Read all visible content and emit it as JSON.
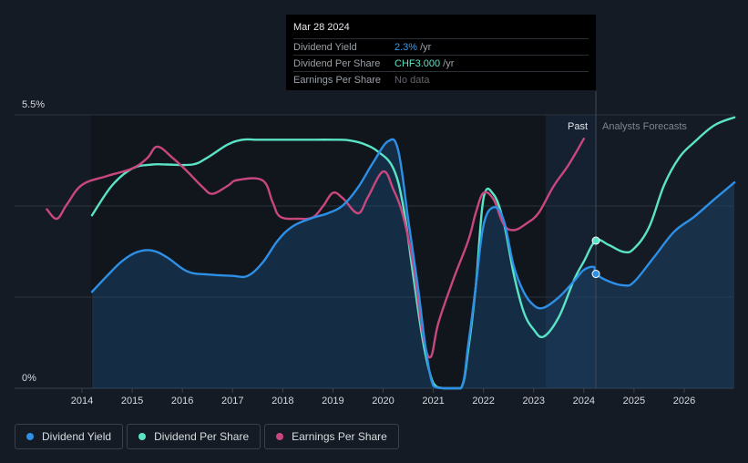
{
  "tooltip": {
    "date": "Mar 28 2024",
    "rows": [
      {
        "name": "Dividend Yield",
        "value": "2.3%",
        "unit": "/yr"
      },
      {
        "name": "Dividend Per Share",
        "value": "CHF3.000",
        "unit": "/yr"
      },
      {
        "name": "Earnings Per Share",
        "value": "No data",
        "unit": ""
      }
    ]
  },
  "legend": [
    {
      "label": "Dividend Yield",
      "color": "#2d8fe6"
    },
    {
      "label": "Dividend Per Share",
      "color": "#5be3c6"
    },
    {
      "label": "Earnings Per Share",
      "color": "#c9477f"
    }
  ],
  "chart_data": {
    "type": "line",
    "title": "",
    "ylabel": "",
    "ylim": [
      0,
      5.5
    ],
    "y_tick_labels": [
      "5.5%",
      "0%"
    ],
    "xlim": [
      2013.0,
      2027.0
    ],
    "x_ticks": [
      "2014",
      "2015",
      "2016",
      "2017",
      "2018",
      "2019",
      "2020",
      "2021",
      "2022",
      "2023",
      "2024",
      "2025",
      "2026"
    ],
    "divider_x": 2024.24,
    "forecast_start_shade": 2023.24,
    "region_labels": {
      "past": "Past",
      "forecast": "Analysts Forecasts"
    },
    "series": [
      {
        "name": "Dividend Yield",
        "color": "#2d8fe6",
        "filled": true,
        "points": [
          [
            2014.2,
            1.94
          ],
          [
            2014.5,
            2.26
          ],
          [
            2014.8,
            2.56
          ],
          [
            2015.1,
            2.74
          ],
          [
            2015.4,
            2.77
          ],
          [
            2015.7,
            2.63
          ],
          [
            2016.1,
            2.35
          ],
          [
            2016.5,
            2.29
          ],
          [
            2017.0,
            2.26
          ],
          [
            2017.3,
            2.26
          ],
          [
            2017.6,
            2.53
          ],
          [
            2017.9,
            2.97
          ],
          [
            2018.2,
            3.26
          ],
          [
            2018.6,
            3.43
          ],
          [
            2018.9,
            3.52
          ],
          [
            2019.2,
            3.68
          ],
          [
            2019.5,
            4.04
          ],
          [
            2019.8,
            4.54
          ],
          [
            2020.1,
            4.97
          ],
          [
            2020.3,
            4.79
          ],
          [
            2020.5,
            3.4
          ],
          [
            2020.7,
            1.99
          ],
          [
            2020.85,
            0.8
          ],
          [
            2021.0,
            0.05
          ],
          [
            2021.2,
            0.0
          ],
          [
            2021.55,
            0.0
          ],
          [
            2021.7,
            0.9
          ],
          [
            2021.85,
            2.08
          ],
          [
            2022.0,
            3.28
          ],
          [
            2022.2,
            3.64
          ],
          [
            2022.4,
            3.39
          ],
          [
            2022.6,
            2.47
          ],
          [
            2022.8,
            1.94
          ],
          [
            2023.0,
            1.67
          ],
          [
            2023.2,
            1.62
          ],
          [
            2023.5,
            1.83
          ],
          [
            2023.8,
            2.15
          ],
          [
            2024.0,
            2.38
          ],
          [
            2024.2,
            2.44
          ],
          [
            2024.24,
            2.3
          ],
          [
            2024.5,
            2.15
          ],
          [
            2024.8,
            2.07
          ],
          [
            2025.0,
            2.14
          ],
          [
            2025.4,
            2.64
          ],
          [
            2025.8,
            3.15
          ],
          [
            2026.2,
            3.45
          ],
          [
            2026.6,
            3.8
          ],
          [
            2027.0,
            4.14
          ]
        ]
      },
      {
        "name": "Dividend Per Share",
        "color": "#5be3c6",
        "filled": false,
        "points": [
          [
            2014.2,
            3.48
          ],
          [
            2014.6,
            4.08
          ],
          [
            2015.0,
            4.42
          ],
          [
            2015.4,
            4.5
          ],
          [
            2015.7,
            4.5
          ],
          [
            2016.2,
            4.5
          ],
          [
            2016.5,
            4.64
          ],
          [
            2016.9,
            4.9
          ],
          [
            2017.2,
            5.0
          ],
          [
            2017.5,
            5.0
          ],
          [
            2018.0,
            5.0
          ],
          [
            2018.5,
            5.0
          ],
          [
            2019.0,
            5.0
          ],
          [
            2019.3,
            4.99
          ],
          [
            2019.6,
            4.92
          ],
          [
            2019.9,
            4.76
          ],
          [
            2020.2,
            4.43
          ],
          [
            2020.4,
            3.67
          ],
          [
            2020.6,
            2.27
          ],
          [
            2020.8,
            0.91
          ],
          [
            2021.0,
            0.1
          ],
          [
            2021.2,
            0.0
          ],
          [
            2021.55,
            0.0
          ],
          [
            2021.7,
            0.8
          ],
          [
            2021.85,
            2.09
          ],
          [
            2022.0,
            3.82
          ],
          [
            2022.2,
            3.9
          ],
          [
            2022.4,
            3.35
          ],
          [
            2022.6,
            2.31
          ],
          [
            2022.8,
            1.54
          ],
          [
            2023.0,
            1.18
          ],
          [
            2023.2,
            1.04
          ],
          [
            2023.5,
            1.43
          ],
          [
            2023.8,
            2.17
          ],
          [
            2024.0,
            2.55
          ],
          [
            2024.24,
            2.97
          ],
          [
            2024.5,
            2.88
          ],
          [
            2024.8,
            2.74
          ],
          [
            2025.0,
            2.81
          ],
          [
            2025.3,
            3.24
          ],
          [
            2025.6,
            4.09
          ],
          [
            2025.9,
            4.64
          ],
          [
            2026.2,
            4.95
          ],
          [
            2026.6,
            5.29
          ],
          [
            2027.0,
            5.45
          ]
        ]
      },
      {
        "name": "Earnings Per Share",
        "color": "#c9477f",
        "filled": false,
        "points": [
          [
            2013.3,
            3.6
          ],
          [
            2013.5,
            3.41
          ],
          [
            2013.7,
            3.7
          ],
          [
            2014.0,
            4.09
          ],
          [
            2014.5,
            4.27
          ],
          [
            2015.0,
            4.42
          ],
          [
            2015.3,
            4.63
          ],
          [
            2015.5,
            4.86
          ],
          [
            2015.8,
            4.64
          ],
          [
            2016.1,
            4.36
          ],
          [
            2016.4,
            4.05
          ],
          [
            2016.6,
            3.91
          ],
          [
            2016.9,
            4.07
          ],
          [
            2017.1,
            4.19
          ],
          [
            2017.6,
            4.18
          ],
          [
            2017.8,
            3.74
          ],
          [
            2017.95,
            3.45
          ],
          [
            2018.3,
            3.41
          ],
          [
            2018.6,
            3.44
          ],
          [
            2018.8,
            3.66
          ],
          [
            2019.0,
            3.93
          ],
          [
            2019.2,
            3.82
          ],
          [
            2019.5,
            3.52
          ],
          [
            2019.7,
            3.85
          ],
          [
            2020.0,
            4.36
          ],
          [
            2020.2,
            4.01
          ],
          [
            2020.4,
            3.46
          ],
          [
            2020.6,
            2.49
          ],
          [
            2020.8,
            1.04
          ],
          [
            2020.95,
            0.63
          ],
          [
            2021.1,
            1.31
          ],
          [
            2021.4,
            2.19
          ],
          [
            2021.7,
            2.98
          ],
          [
            2021.85,
            3.54
          ],
          [
            2022.0,
            3.93
          ],
          [
            2022.2,
            3.8
          ],
          [
            2022.4,
            3.3
          ],
          [
            2022.6,
            3.18
          ],
          [
            2022.85,
            3.31
          ],
          [
            2023.1,
            3.53
          ],
          [
            2023.4,
            4.07
          ],
          [
            2023.7,
            4.5
          ],
          [
            2024.0,
            5.02
          ]
        ]
      }
    ],
    "markers": [
      {
        "series": "Dividend Per Share",
        "x": 2024.24,
        "y": 2.97
      },
      {
        "series": "Dividend Yield",
        "x": 2024.24,
        "y": 2.3
      }
    ]
  }
}
